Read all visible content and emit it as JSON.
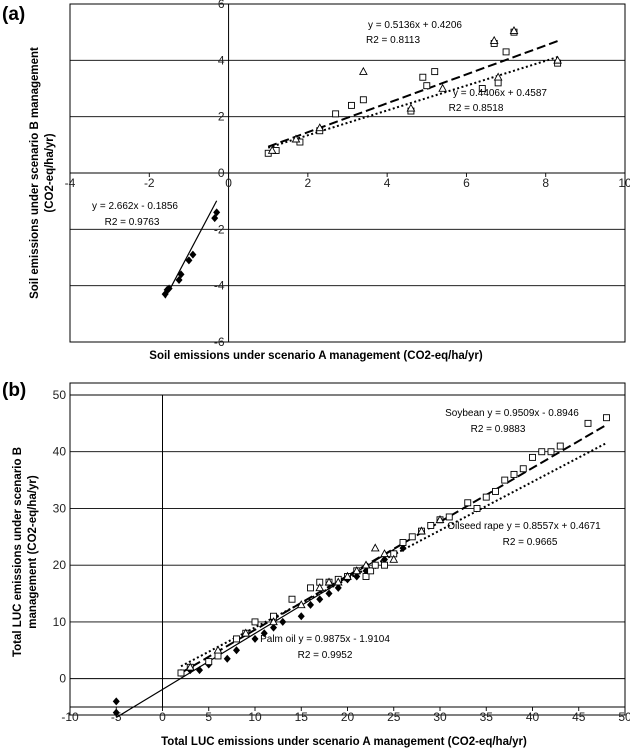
{
  "chart_data": [
    {
      "panel_label": "(a)",
      "type": "scatter",
      "xlabel": "Soil emissions under scenario A management (CO2-eq/ha/yr)",
      "ylabel_line1": "Soil emissions under scenario B management",
      "ylabel_line2": "(CO2-eq/ha/yr)",
      "xlim": [
        -4,
        10
      ],
      "ylim": [
        -6,
        6
      ],
      "xticks": [
        "-4",
        "-2",
        "0",
        "2",
        "4",
        "6",
        "8",
        "10"
      ],
      "yticks": [
        "-6",
        "-4",
        "-2",
        "0",
        "2",
        "4",
        "6"
      ],
      "horizontal_grid": true,
      "series": [
        {
          "marker": "diamond",
          "points": [
            [
              -0.3,
              -1.4
            ],
            [
              -0.35,
              -1.6
            ],
            [
              -0.9,
              -2.9
            ],
            [
              -1.0,
              -3.1
            ],
            [
              -1.2,
              -3.6
            ],
            [
              -1.25,
              -3.8
            ],
            [
              -1.5,
              -4.1
            ],
            [
              -1.55,
              -4.15
            ],
            [
              -1.6,
              -4.3
            ]
          ]
        },
        {
          "marker": "square",
          "points": [
            [
              1.0,
              0.7
            ],
            [
              1.2,
              0.8
            ],
            [
              1.8,
              1.1
            ],
            [
              2.3,
              1.5
            ],
            [
              2.7,
              2.1
            ],
            [
              3.1,
              2.4
            ],
            [
              3.4,
              2.6
            ],
            [
              4.6,
              2.2
            ],
            [
              4.9,
              3.4
            ],
            [
              5.0,
              3.1
            ],
            [
              5.2,
              3.6
            ],
            [
              6.4,
              3.0
            ],
            [
              6.7,
              4.6
            ],
            [
              6.8,
              3.2
            ],
            [
              7.0,
              4.3
            ],
            [
              7.2,
              5.0
            ],
            [
              8.3,
              3.9
            ]
          ]
        },
        {
          "marker": "triangle",
          "points": [
            [
              1.1,
              0.8
            ],
            [
              1.7,
              1.2
            ],
            [
              2.3,
              1.6
            ],
            [
              3.4,
              3.6
            ],
            [
              4.6,
              2.3
            ],
            [
              5.4,
              3.0
            ],
            [
              6.7,
              4.7
            ],
            [
              6.8,
              3.4
            ],
            [
              7.2,
              5.05
            ],
            [
              8.3,
              4.0
            ]
          ]
        }
      ],
      "fits": [
        {
          "line": "solid",
          "equation": "y = 2.662x - 0.1856",
          "r2": "R2 = 0.9763",
          "slope": 2.662,
          "intercept": -0.1856,
          "x": [
            -1.6,
            -0.3
          ]
        },
        {
          "line": "dashed",
          "equation": "y = 0.5136x + 0.4206",
          "r2": "R2 = 0.8113",
          "slope": 0.5136,
          "intercept": 0.4206,
          "x": [
            1.0,
            8.3
          ]
        },
        {
          "line": "dotted",
          "equation": "y = 0.4406x + 0.4587",
          "r2": "R2 = 0.8518",
          "slope": 0.4406,
          "intercept": 0.4587,
          "x": [
            1.0,
            8.3
          ]
        }
      ]
    },
    {
      "panel_label": "(b)",
      "type": "scatter",
      "xlabel": "Total LUC emissions under scenario A management (CO2-eq/ha/yr)",
      "ylabel_line1": "Total LUC emissions under scenario B",
      "ylabel_line2": "management (CO2-eq/ha/yr)",
      "xlim": [
        -10,
        50
      ],
      "ylim": [
        -5,
        50
      ],
      "xticks": [
        "-10",
        "-5",
        "0",
        "5",
        "10",
        "15",
        "20",
        "25",
        "30",
        "35",
        "40",
        "45",
        "50"
      ],
      "yticks": [
        "0",
        "10",
        "20",
        "30",
        "40",
        "50"
      ],
      "horizontal_grid": true,
      "series": [
        {
          "name": "Palm oil",
          "marker": "diamond",
          "points": [
            [
              -5,
              -4
            ],
            [
              -5,
              -6
            ],
            [
              2,
              1
            ],
            [
              3,
              1.5
            ],
            [
              4,
              1.5
            ],
            [
              5,
              2.5
            ],
            [
              7,
              3.5
            ],
            [
              8,
              5
            ],
            [
              10,
              7
            ],
            [
              11,
              8
            ],
            [
              12,
              9
            ],
            [
              13,
              10
            ],
            [
              15,
              11
            ],
            [
              16,
              13
            ],
            [
              17,
              14
            ],
            [
              18,
              15
            ],
            [
              19,
              16
            ],
            [
              20,
              17.5
            ],
            [
              21,
              18
            ],
            [
              22,
              19
            ],
            [
              23,
              20
            ],
            [
              24,
              21
            ],
            [
              25,
              22
            ],
            [
              26,
              23
            ]
          ]
        },
        {
          "name": "Soybean",
          "marker": "square",
          "points": [
            [
              2,
              1
            ],
            [
              3,
              2
            ],
            [
              5,
              3
            ],
            [
              6,
              4
            ],
            [
              8,
              7
            ],
            [
              9,
              8
            ],
            [
              10,
              10
            ],
            [
              12,
              11
            ],
            [
              14,
              14
            ],
            [
              16,
              16
            ],
            [
              17,
              17
            ],
            [
              18,
              17
            ],
            [
              19,
              17.5
            ],
            [
              20,
              18
            ],
            [
              21,
              19
            ],
            [
              22,
              18
            ],
            [
              22.5,
              19
            ],
            [
              23,
              20
            ],
            [
              24,
              20
            ],
            [
              25,
              22
            ],
            [
              26,
              24
            ],
            [
              27,
              25
            ],
            [
              28,
              26
            ],
            [
              29,
              27
            ],
            [
              30,
              28
            ],
            [
              31,
              28.5
            ],
            [
              33,
              31
            ],
            [
              34,
              30
            ],
            [
              35,
              32
            ],
            [
              36,
              33
            ],
            [
              37,
              35
            ],
            [
              38,
              36
            ],
            [
              39,
              37
            ],
            [
              40,
              39
            ],
            [
              41,
              40
            ],
            [
              42,
              40
            ],
            [
              43,
              41
            ],
            [
              46,
              45
            ],
            [
              48,
              46
            ]
          ]
        },
        {
          "name": "Oilseed rape",
          "marker": "triangle",
          "points": [
            [
              3,
              2
            ],
            [
              6,
              5
            ],
            [
              9,
              8
            ],
            [
              12,
              10
            ],
            [
              15,
              13
            ],
            [
              17,
              16
            ],
            [
              18,
              17
            ],
            [
              19,
              17
            ],
            [
              20,
              18
            ],
            [
              21,
              19
            ],
            [
              22,
              20
            ],
            [
              23,
              23
            ],
            [
              24,
              22
            ],
            [
              25,
              21
            ],
            [
              28,
              26
            ],
            [
              30,
              28
            ]
          ]
        }
      ],
      "fits": [
        {
          "line": "solid",
          "equation": "Palm oil y = 0.9875x - 1.9104",
          "r2": "R2 = 0.9952",
          "slope": 0.9875,
          "intercept": -1.9104,
          "x": [
            -5,
            26
          ]
        },
        {
          "line": "dashed",
          "equation": "Soybean y = 0.9509x - 0.8946",
          "r2": "R2 = 0.9883",
          "slope": 0.9509,
          "intercept": -0.8946,
          "x": [
            2,
            48
          ]
        },
        {
          "line": "dotted",
          "equation": "Oilseed rape y = 0.8557x + 0.4671",
          "r2": "R2 = 0.9665",
          "slope": 0.8557,
          "intercept": 0.4671,
          "x": [
            2,
            48
          ]
        }
      ]
    }
  ]
}
